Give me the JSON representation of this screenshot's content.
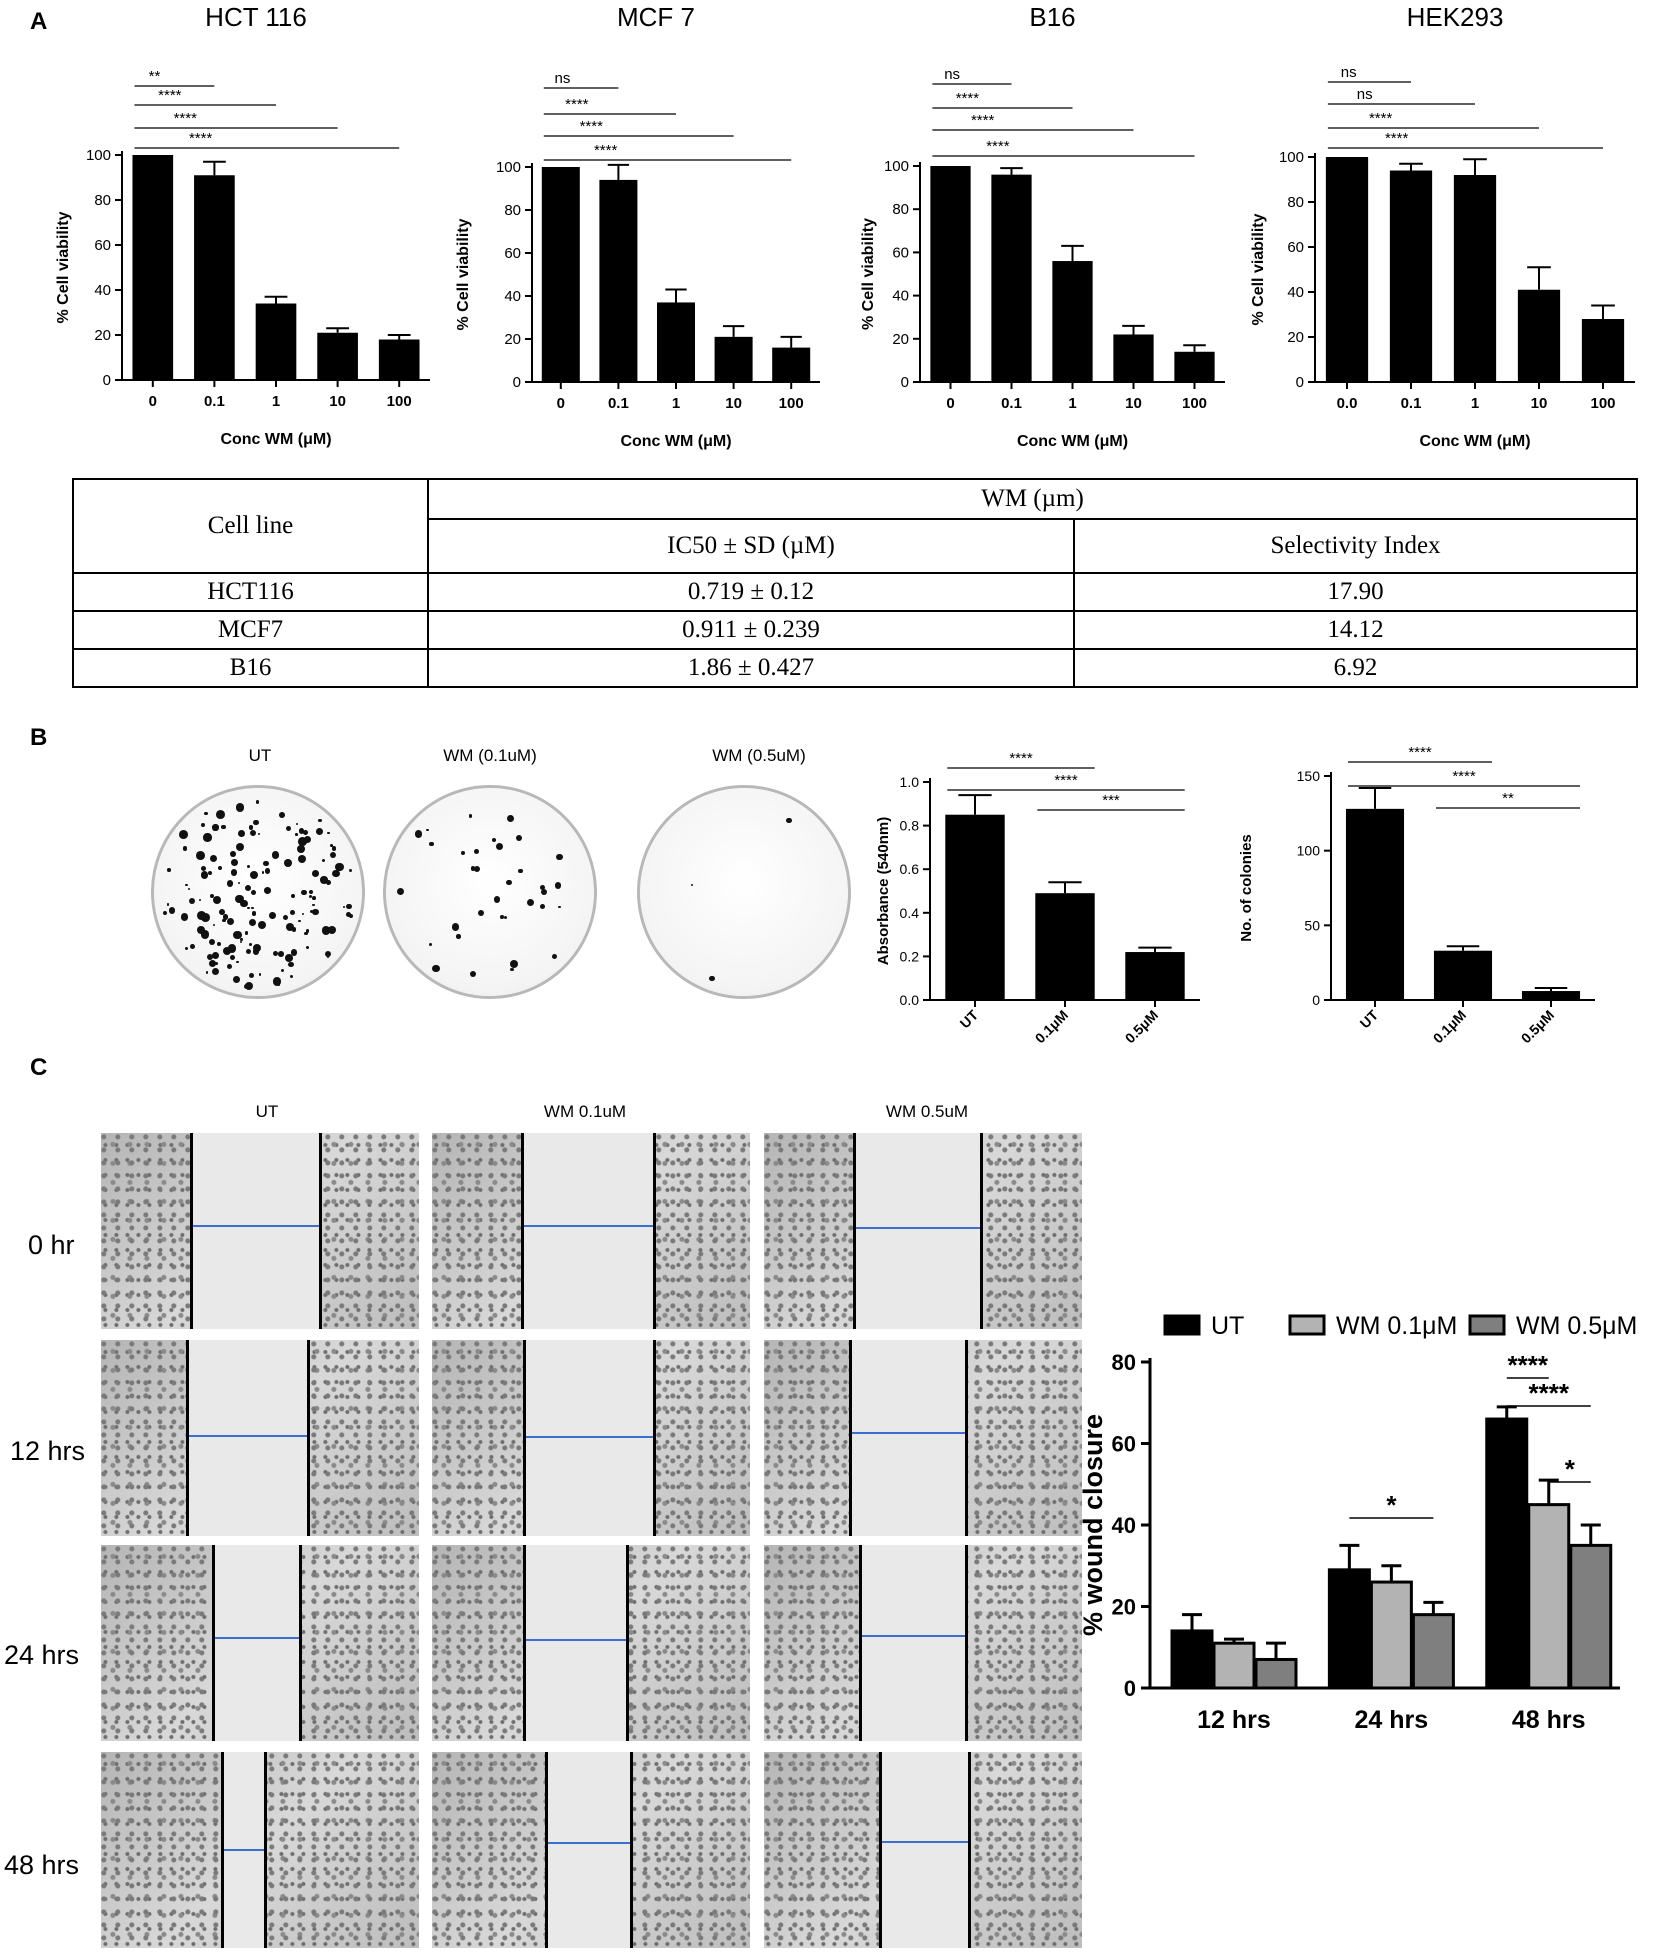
{
  "panels": {
    "a": "A",
    "b": "B",
    "c": "C"
  },
  "chart_data": [
    {
      "id": "hct116",
      "type": "bar",
      "title": "HCT 116",
      "xlabel": "Conc WM (μM)",
      "ylabel": "% Cell viability",
      "categories": [
        "0",
        "0.1",
        "1",
        "10",
        "100"
      ],
      "values": [
        100,
        91,
        34,
        21,
        18
      ],
      "errors": [
        0,
        6,
        3,
        2,
        2
      ],
      "ylim": [
        0,
        100
      ],
      "yticks": [
        0,
        20,
        40,
        60,
        80,
        100
      ],
      "significance": [
        {
          "label": "**",
          "from": 0,
          "to": 1
        },
        {
          "label": "****",
          "from": 0,
          "to": 2
        },
        {
          "label": "****",
          "from": 0,
          "to": 3
        },
        {
          "label": "****",
          "from": 0,
          "to": 4
        }
      ]
    },
    {
      "id": "mcf7",
      "type": "bar",
      "title": "MCF 7",
      "xlabel": "Conc WM (μM)",
      "ylabel": "% Cell viability",
      "categories": [
        "0",
        "0.1",
        "1",
        "10",
        "100"
      ],
      "values": [
        100,
        94,
        37,
        21,
        16
      ],
      "errors": [
        0,
        7,
        6,
        5,
        5
      ],
      "ylim": [
        0,
        100
      ],
      "yticks": [
        0,
        20,
        40,
        60,
        80,
        100
      ],
      "significance": [
        {
          "label": "ns",
          "from": 0,
          "to": 1
        },
        {
          "label": "****",
          "from": 0,
          "to": 2
        },
        {
          "label": "****",
          "from": 0,
          "to": 3
        },
        {
          "label": "****",
          "from": 0,
          "to": 4
        }
      ]
    },
    {
      "id": "b16",
      "type": "bar",
      "title": "B16",
      "xlabel": "Conc WM (μM)",
      "ylabel": "% Cell viability",
      "categories": [
        "0",
        "0.1",
        "1",
        "10",
        "100"
      ],
      "values": [
        100,
        96,
        56,
        22,
        14
      ],
      "errors": [
        0,
        3,
        7,
        4,
        3
      ],
      "ylim": [
        0,
        100
      ],
      "yticks": [
        0,
        20,
        40,
        60,
        80,
        100
      ],
      "significance": [
        {
          "label": "ns",
          "from": 0,
          "to": 1
        },
        {
          "label": "****",
          "from": 0,
          "to": 2
        },
        {
          "label": "****",
          "from": 0,
          "to": 3
        },
        {
          "label": "****",
          "from": 0,
          "to": 4
        }
      ]
    },
    {
      "id": "hek293",
      "type": "bar",
      "title": "HEK293",
      "xlabel": "Conc WM (μM)",
      "ylabel": "% Cell viability",
      "categories": [
        "0.0",
        "0.1",
        "1",
        "10",
        "100"
      ],
      "values": [
        100,
        94,
        92,
        41,
        28
      ],
      "errors": [
        0,
        3,
        7,
        10,
        6
      ],
      "ylim": [
        0,
        100
      ],
      "yticks": [
        0,
        20,
        40,
        60,
        80,
        100
      ],
      "significance": [
        {
          "label": "ns",
          "from": 0,
          "to": 1
        },
        {
          "label": "ns",
          "from": 0,
          "to": 2
        },
        {
          "label": "****",
          "from": 0,
          "to": 3
        },
        {
          "label": "****",
          "from": 0,
          "to": 4
        }
      ]
    },
    {
      "id": "absorbance",
      "type": "bar",
      "title": "",
      "xlabel": "",
      "ylabel": "Absorbance (540nm)",
      "categories": [
        "UT",
        "0.1μM",
        "0.5μM"
      ],
      "values": [
        0.85,
        0.49,
        0.22
      ],
      "errors": [
        0.09,
        0.05,
        0.02
      ],
      "ylim": [
        0,
        1.0
      ],
      "yticks": [
        "0.0",
        "0.2",
        "0.4",
        "0.6",
        "0.8",
        "1.0"
      ],
      "significance": [
        {
          "label": "****",
          "from": 0,
          "to": 1
        },
        {
          "label": "****",
          "from": 0,
          "to": 2
        },
        {
          "label": "***",
          "from": 1,
          "to": 2
        }
      ]
    },
    {
      "id": "colonies",
      "type": "bar",
      "title": "",
      "xlabel": "",
      "ylabel": "No. of colonies",
      "categories": [
        "UT",
        "0.1μM",
        "0.5μM"
      ],
      "values": [
        128,
        33,
        6
      ],
      "errors": [
        14,
        3,
        2
      ],
      "ylim": [
        0,
        150
      ],
      "yticks": [
        "0",
        "50",
        "100",
        "150"
      ],
      "significance": [
        {
          "label": "****",
          "from": 0,
          "to": 1
        },
        {
          "label": "****",
          "from": 0,
          "to": 2
        },
        {
          "label": "**",
          "from": 1,
          "to": 2
        }
      ]
    },
    {
      "id": "wound",
      "type": "bar",
      "title": "",
      "xlabel": "",
      "ylabel": "% wound closure",
      "categories": [
        "12 hrs",
        "24 hrs",
        "48 hrs"
      ],
      "series": [
        {
          "name": "UT",
          "color": "#000000",
          "values": [
            14,
            29,
            66
          ],
          "errors": [
            4,
            6,
            3
          ]
        },
        {
          "name": "WM 0.1μM",
          "color": "#b3b3b3",
          "values": [
            11,
            26,
            45
          ],
          "errors": [
            1,
            4,
            6
          ]
        },
        {
          "name": "WM 0.5μM",
          "color": "#7f7f7f",
          "values": [
            7,
            18,
            35
          ],
          "errors": [
            4,
            3,
            5
          ]
        }
      ],
      "ylim": [
        0,
        80
      ],
      "yticks": [
        0,
        20,
        40,
        60,
        80
      ],
      "significance": [
        {
          "label": "*",
          "group": 1,
          "from": 0,
          "to": 2
        },
        {
          "label": "****",
          "group": 2,
          "from": 0,
          "to": 1
        },
        {
          "label": "****",
          "group": 2,
          "from": 0,
          "to": 2
        },
        {
          "label": "*",
          "group": 2,
          "from": 1,
          "to": 2
        }
      ]
    }
  ],
  "ic50_table": {
    "header_cell_line": "Cell line",
    "header_group": "WM (µm)",
    "header_ic50": "IC50 ± SD (µM)",
    "header_si": "Selectivity Index",
    "rows": [
      {
        "cell": "HCT116",
        "ic50": "0.719 ± 0.12",
        "si": "17.90"
      },
      {
        "cell": "MCF7",
        "ic50": "0.911 ± 0.239",
        "si": "14.12"
      },
      {
        "cell": "B16",
        "ic50": "1.86 ± 0.427",
        "si": "6.92"
      }
    ]
  },
  "colony_assay": {
    "labels": [
      "UT",
      "WM (0.1uM)",
      "WM (0.5uM)"
    ]
  },
  "wound_assay": {
    "columns": [
      "UT",
      "WM 0.1uM",
      "WM 0.5uM"
    ],
    "rows": [
      "0 hr",
      "12 hrs",
      "24 hrs",
      "48 hrs"
    ]
  }
}
